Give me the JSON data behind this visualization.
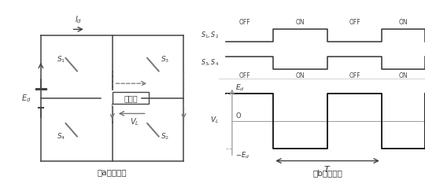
{
  "circuit_label": "（a）回　路",
  "waveform_label": "（b）波　形",
  "fuku_label": "負　荷",
  "line_color": "#444444",
  "dashed_color": "#777777",
  "waveform_color": "#333333",
  "gray": "#888888",
  "light_gray": "#aaaaaa"
}
